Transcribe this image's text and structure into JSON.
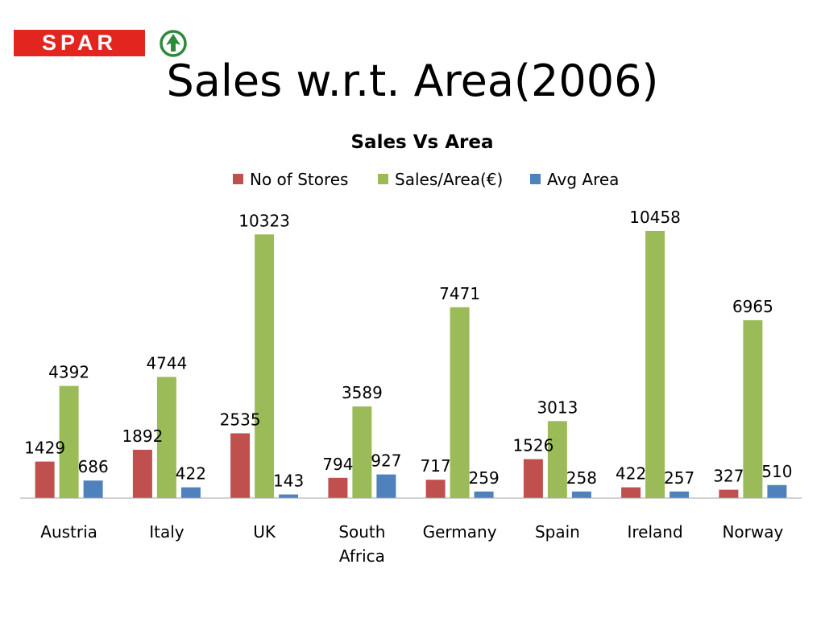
{
  "slide": {
    "title": "Sales w.r.t. Area(2006)",
    "logo_text": "SPAR"
  },
  "colors": {
    "logo_red": "#e2261f",
    "logo_green": "#2e8a3b"
  },
  "chart_data": {
    "type": "bar",
    "title": "Sales Vs Area",
    "xlabel": "",
    "ylabel": "",
    "categories": [
      "Austria",
      "Italy",
      "UK",
      "South Africa",
      "Germany",
      "Spain",
      "Ireland",
      "Norway"
    ],
    "category_lines": [
      [
        "Austria"
      ],
      [
        "Italy"
      ],
      [
        "UK"
      ],
      [
        "South",
        "Africa"
      ],
      [
        "Germany"
      ],
      [
        "Spain"
      ],
      [
        "Ireland"
      ],
      [
        "Norway"
      ]
    ],
    "series": [
      {
        "name": "No of Stores",
        "color": "#c0504d",
        "values": [
          1429,
          1892,
          2535,
          794,
          717,
          1526,
          422,
          327
        ]
      },
      {
        "name": "Sales/Area(€)",
        "color": "#9bbb59",
        "values": [
          4392,
          4744,
          10323,
          3589,
          7471,
          3013,
          10458,
          6965
        ]
      },
      {
        "name": "Avg Area",
        "color": "#4f81bd",
        "values": [
          686,
          422,
          143,
          927,
          259,
          258,
          257,
          510
        ]
      }
    ],
    "ylim": [
      0,
      10458
    ],
    "grid": false,
    "legend_position": "top",
    "data_labels": true
  }
}
